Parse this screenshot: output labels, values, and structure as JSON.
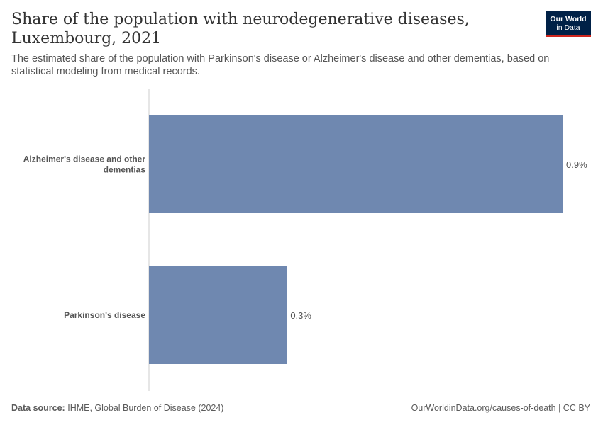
{
  "header": {
    "title": "Share of the population with neurodegenerative diseases, Luxembourg, 2021",
    "subtitle": "The estimated share of the population with Parkinson's disease or Alzheimer's disease and other dementias, based on statistical modeling from medical records.",
    "logo_line1": "Our World",
    "logo_line2": "in Data"
  },
  "chart_data": {
    "type": "bar",
    "orientation": "horizontal",
    "categories": [
      "Alzheimer's disease and other dementias",
      "Parkinson's disease"
    ],
    "category_label_lines": [
      [
        "Alzheimer's disease and other",
        "dementias"
      ],
      [
        "Parkinson's disease"
      ]
    ],
    "values": [
      0.9,
      0.3
    ],
    "value_labels": [
      "0.9%",
      "0.3%"
    ],
    "unit": "%",
    "xlim": [
      0,
      0.9
    ],
    "bar_color": "#6f88b0",
    "grid": false
  },
  "footer": {
    "source_label": "Data source:",
    "source_text": "IHME, Global Burden of Disease (2024)",
    "url_text": "OurWorldinData.org/causes-of-death | CC BY"
  },
  "colors": {
    "title": "#333333",
    "axis": "#cccccc",
    "logo_bg": "#002147",
    "logo_accent": "#ce261e"
  }
}
